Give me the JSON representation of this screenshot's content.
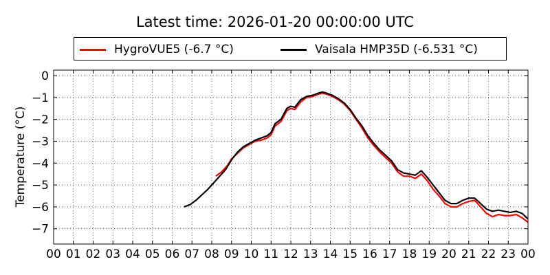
{
  "chart_data": {
    "type": "line",
    "title": "Latest time: 2026-01-20 00:00:00 UTC",
    "xlabel": "",
    "ylabel": "Temperature (°C)",
    "xlim": [
      0,
      24
    ],
    "ylim": [
      -7.7,
      0.25
    ],
    "x_ticks": [
      "00",
      "01",
      "02",
      "03",
      "04",
      "05",
      "06",
      "07",
      "08",
      "09",
      "10",
      "11",
      "12",
      "13",
      "14",
      "15",
      "16",
      "17",
      "18",
      "19",
      "20",
      "21",
      "22",
      "23",
      "00"
    ],
    "y_ticks": [
      0,
      -1,
      -2,
      -3,
      -4,
      -5,
      -6,
      -7
    ],
    "grid": true,
    "legend_position": "top-center",
    "series": [
      {
        "name": "HygroVUE5 (-6.7 °C)",
        "color": "#ff0000",
        "x": [
          8.2,
          8.5,
          8.8,
          9.0,
          9.3,
          9.6,
          9.9,
          10.2,
          10.5,
          10.8,
          11.0,
          11.2,
          11.5,
          11.8,
          12.0,
          12.2,
          12.5,
          12.8,
          13.1,
          13.4,
          13.6,
          13.8,
          14.1,
          14.4,
          14.7,
          15.0,
          15.3,
          15.6,
          15.9,
          16.2,
          16.5,
          16.8,
          17.1,
          17.4,
          17.7,
          18.0,
          18.3,
          18.6,
          18.9,
          19.2,
          19.5,
          19.8,
          20.1,
          20.4,
          20.7,
          21.0,
          21.3,
          21.6,
          21.9,
          22.2,
          22.5,
          22.8,
          23.1,
          23.4,
          23.7,
          24.0
        ],
        "y": [
          -4.6,
          -4.4,
          -4.1,
          -3.8,
          -3.55,
          -3.3,
          -3.15,
          -3.0,
          -2.95,
          -2.85,
          -2.7,
          -2.3,
          -2.1,
          -1.6,
          -1.5,
          -1.55,
          -1.2,
          -1.0,
          -0.95,
          -0.85,
          -0.8,
          -0.85,
          -0.95,
          -1.1,
          -1.3,
          -1.6,
          -2.0,
          -2.4,
          -2.85,
          -3.2,
          -3.5,
          -3.75,
          -4.0,
          -4.4,
          -4.6,
          -4.6,
          -4.7,
          -4.5,
          -4.8,
          -5.2,
          -5.5,
          -5.85,
          -6.0,
          -6.0,
          -5.85,
          -5.75,
          -5.7,
          -6.0,
          -6.3,
          -6.45,
          -6.35,
          -6.4,
          -6.4,
          -6.35,
          -6.5,
          -6.7
        ]
      },
      {
        "name": "Vaisala HMP35D (-6.531 °C)",
        "color": "#000000",
        "x": [
          6.6,
          6.9,
          7.2,
          7.5,
          7.8,
          8.1,
          8.4,
          8.7,
          9.0,
          9.3,
          9.6,
          9.9,
          10.2,
          10.5,
          10.8,
          11.0,
          11.2,
          11.5,
          11.8,
          12.0,
          12.2,
          12.5,
          12.8,
          13.1,
          13.4,
          13.6,
          13.8,
          14.1,
          14.4,
          14.7,
          15.0,
          15.3,
          15.6,
          15.9,
          16.2,
          16.5,
          16.8,
          17.1,
          17.4,
          17.7,
          18.0,
          18.3,
          18.6,
          18.9,
          19.2,
          19.5,
          19.8,
          20.1,
          20.4,
          20.7,
          21.0,
          21.3,
          21.6,
          21.9,
          22.2,
          22.5,
          22.8,
          23.1,
          23.4,
          23.7,
          24.0
        ],
        "y": [
          -6.0,
          -5.9,
          -5.7,
          -5.45,
          -5.2,
          -4.9,
          -4.6,
          -4.3,
          -3.85,
          -3.5,
          -3.25,
          -3.1,
          -2.95,
          -2.85,
          -2.75,
          -2.6,
          -2.2,
          -2.0,
          -1.5,
          -1.4,
          -1.45,
          -1.1,
          -0.95,
          -0.9,
          -0.8,
          -0.75,
          -0.8,
          -0.9,
          -1.05,
          -1.25,
          -1.55,
          -1.95,
          -2.3,
          -2.75,
          -3.1,
          -3.4,
          -3.65,
          -3.9,
          -4.3,
          -4.45,
          -4.5,
          -4.55,
          -4.35,
          -4.65,
          -5.0,
          -5.35,
          -5.7,
          -5.85,
          -5.85,
          -5.7,
          -5.6,
          -5.6,
          -5.85,
          -6.1,
          -6.2,
          -6.15,
          -6.2,
          -6.25,
          -6.2,
          -6.3,
          -6.55
        ]
      }
    ]
  }
}
